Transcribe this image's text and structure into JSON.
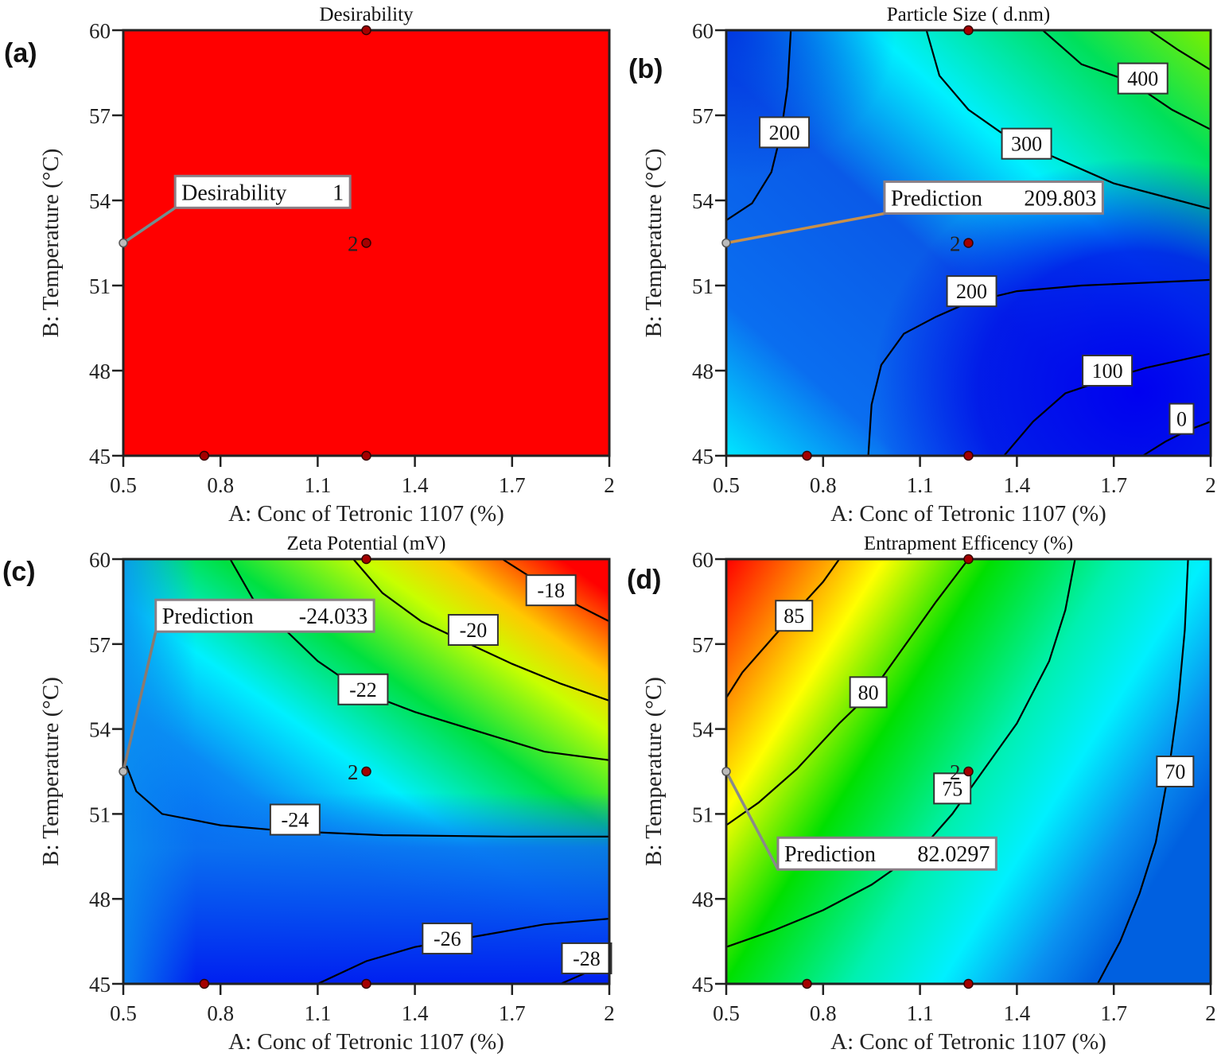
{
  "figure": {
    "x_axis": {
      "label": "A: Conc of Tetronic 1107 (%)",
      "range": [
        0.5,
        2.0
      ],
      "ticks": [
        0.5,
        0.8,
        1.1,
        1.4,
        1.7,
        2
      ],
      "tick_labels": [
        "0.5",
        "0.8",
        "1.1",
        "1.4",
        "1.7",
        "2"
      ]
    },
    "y_axis": {
      "label": "B: Temperature (°C)",
      "range": [
        45,
        60
      ],
      "ticks": [
        45,
        48,
        51,
        54,
        57,
        60
      ],
      "tick_labels": [
        "45",
        "48",
        "51",
        "54",
        "57",
        "60"
      ]
    },
    "design_points": [
      {
        "A": 1.25,
        "B": 60,
        "label": ""
      },
      {
        "A": 1.25,
        "B": 52.5,
        "label": "2"
      },
      {
        "A": 0.75,
        "B": 45,
        "label": ""
      },
      {
        "A": 1.25,
        "B": 45,
        "label": ""
      }
    ]
  },
  "chart_data": [
    {
      "id": "a",
      "type": "heatmap",
      "panel_label": "(a)",
      "title": "Desirability",
      "xlabel": "A: Conc of Tetronic 1107 (%)",
      "ylabel": "B: Temperature (°C)",
      "xlim": [
        0.5,
        2.0
      ],
      "ylim": [
        45,
        60
      ],
      "fill": "uniform",
      "fill_color": "#ff0000",
      "contours": [],
      "prediction": {
        "label": "Desirability",
        "value": "1",
        "at": {
          "A": 0.5,
          "B": 52.5
        },
        "box_at": {
          "A": 0.66,
          "B": 54.3
        },
        "leader_color": "#6f8f8f"
      }
    },
    {
      "id": "b",
      "type": "heatmap",
      "panel_label": "(b)",
      "title": "Particle Size ( d.nm)",
      "xlabel": "A: Conc of Tetronic 1107 (%)",
      "ylabel": "B: Temperature (°C)",
      "xlim": [
        0.5,
        2.0
      ],
      "ylim": [
        45,
        60
      ],
      "colormap": "blue-cyan-green (low to high)",
      "contours": [
        {
          "level": 200,
          "label": "200",
          "label_at": {
            "A": 0.68,
            "B": 56.4
          },
          "path": [
            [
              0.5,
              53.3
            ],
            [
              0.58,
              53.9
            ],
            [
              0.64,
              55.0
            ],
            [
              0.67,
              56.4
            ],
            [
              0.69,
              58.0
            ],
            [
              0.7,
              60
            ]
          ]
        },
        {
          "level": 300,
          "label": "300",
          "label_at": {
            "A": 1.43,
            "B": 56.0
          },
          "path": [
            [
              1.12,
              60
            ],
            [
              1.16,
              58.4
            ],
            [
              1.25,
              57.2
            ],
            [
              1.35,
              56.4
            ],
            [
              1.5,
              55.6
            ],
            [
              1.7,
              54.6
            ],
            [
              1.9,
              54.0
            ],
            [
              2.0,
              53.7
            ]
          ]
        },
        {
          "level": 400,
          "label": "400",
          "label_at": {
            "A": 1.79,
            "B": 58.3
          },
          "path": [
            [
              1.48,
              60
            ],
            [
              1.6,
              58.8
            ],
            [
              1.75,
              58.2
            ],
            [
              1.88,
              57.2
            ],
            [
              2.0,
              56.5
            ]
          ]
        },
        {
          "level": 500,
          "label": "",
          "label_at": null,
          "path": [
            [
              1.81,
              60
            ],
            [
              1.9,
              59.3
            ],
            [
              2.0,
              58.6
            ]
          ]
        },
        {
          "level": 200,
          "label": "200",
          "label_at": {
            "A": 1.26,
            "B": 50.8
          },
          "path": [
            [
              0.94,
              45
            ],
            [
              0.95,
              46.8
            ],
            [
              0.98,
              48.2
            ],
            [
              1.05,
              49.3
            ],
            [
              1.15,
              49.9
            ],
            [
              1.25,
              50.4
            ],
            [
              1.4,
              50.8
            ],
            [
              1.6,
              51.0
            ],
            [
              2.0,
              51.2
            ]
          ]
        },
        {
          "level": 100,
          "label": "100",
          "label_at": {
            "A": 1.68,
            "B": 48.0
          },
          "path": [
            [
              1.36,
              45
            ],
            [
              1.45,
              46.2
            ],
            [
              1.55,
              47.2
            ],
            [
              1.68,
              47.7
            ],
            [
              1.8,
              48.1
            ],
            [
              2.0,
              48.6
            ]
          ]
        },
        {
          "level": 0,
          "label": "0",
          "label_at": {
            "A": 1.91,
            "B": 46.3
          },
          "path": [
            [
              1.79,
              45
            ],
            [
              1.86,
              45.5
            ],
            [
              1.93,
              45.9
            ],
            [
              2.0,
              46.2
            ]
          ]
        }
      ],
      "prediction": {
        "label": "Prediction",
        "value": "209.803",
        "at": {
          "A": 0.5,
          "B": 52.5
        },
        "box_at": {
          "A": 0.99,
          "B": 54.1
        },
        "leader_color": "#c8904a"
      }
    },
    {
      "id": "c",
      "type": "heatmap",
      "panel_label": "(c)",
      "title": "Zeta Potential (mV)",
      "xlabel": "A: Conc of Tetronic 1107 (%)",
      "ylabel": "B: Temperature (°C)",
      "xlim": [
        0.5,
        2.0
      ],
      "ylim": [
        45,
        60
      ],
      "colormap": "blue-cyan-green-yellow-red (low to high)",
      "contours": [
        {
          "level": -18,
          "label": "-18",
          "label_at": {
            "A": 1.82,
            "B": 58.9
          },
          "path": [
            [
              1.67,
              60
            ],
            [
              1.78,
              59.2
            ],
            [
              1.88,
              58.5
            ],
            [
              2.0,
              57.8
            ]
          ]
        },
        {
          "level": -20,
          "label": "-20",
          "label_at": {
            "A": 1.58,
            "B": 57.5
          },
          "path": [
            [
              1.21,
              60
            ],
            [
              1.3,
              58.8
            ],
            [
              1.42,
              57.8
            ],
            [
              1.55,
              57.1
            ],
            [
              1.7,
              56.3
            ],
            [
              1.85,
              55.6
            ],
            [
              2.0,
              55.0
            ]
          ]
        },
        {
          "level": -22,
          "label": "-22",
          "label_at": {
            "A": 1.24,
            "B": 55.4
          },
          "path": [
            [
              0.83,
              60
            ],
            [
              0.9,
              58.6
            ],
            [
              1.0,
              57.5
            ],
            [
              1.1,
              56.4
            ],
            [
              1.24,
              55.3
            ],
            [
              1.4,
              54.6
            ],
            [
              1.6,
              53.9
            ],
            [
              1.8,
              53.2
            ],
            [
              2.0,
              52.9
            ]
          ]
        },
        {
          "level": -24,
          "label": "-24",
          "label_at": {
            "A": 1.03,
            "B": 50.8
          },
          "path": [
            [
              0.51,
              52.7
            ],
            [
              0.54,
              51.8
            ],
            [
              0.62,
              51.0
            ],
            [
              0.8,
              50.6
            ],
            [
              1.0,
              50.4
            ],
            [
              1.3,
              50.25
            ],
            [
              1.7,
              50.2
            ],
            [
              2.0,
              50.2
            ]
          ]
        },
        {
          "level": -26,
          "label": "-26",
          "label_at": {
            "A": 1.5,
            "B": 46.6
          },
          "path": [
            [
              1.1,
              45
            ],
            [
              1.25,
              45.8
            ],
            [
              1.4,
              46.3
            ],
            [
              1.6,
              46.7
            ],
            [
              1.8,
              47.1
            ],
            [
              2.0,
              47.3
            ]
          ]
        },
        {
          "level": -28,
          "label": "-28",
          "label_at": {
            "A": 1.93,
            "B": 45.9
          },
          "path": [
            [
              1.85,
              45
            ],
            [
              1.93,
              45.4
            ],
            [
              2.0,
              45.5
            ]
          ]
        }
      ],
      "prediction": {
        "label": "Prediction",
        "value": "-24.033",
        "at": {
          "A": 0.5,
          "B": 52.5
        },
        "box_at": {
          "A": 0.6,
          "B": 58.0
        },
        "leader_color": "#8a7a70"
      }
    },
    {
      "id": "d",
      "type": "heatmap",
      "panel_label": "(d)",
      "title": "Entrapment Efficency (%)",
      "xlabel": "A: Conc of Tetronic 1107 (%)",
      "ylabel": "B: Temperature (°C)",
      "xlim": [
        0.5,
        2.0
      ],
      "ylim": [
        45,
        60
      ],
      "colormap": "blue-cyan-green-yellow-red (low to high)",
      "contours": [
        {
          "level": 85,
          "label": "85",
          "label_at": {
            "A": 0.71,
            "B": 58.0
          },
          "path": [
            [
              0.5,
              55.1
            ],
            [
              0.55,
              56.0
            ],
            [
              0.65,
              57.3
            ],
            [
              0.72,
              58.2
            ],
            [
              0.8,
              59.2
            ],
            [
              0.85,
              60
            ]
          ]
        },
        {
          "level": 80,
          "label": "80",
          "label_at": {
            "A": 0.94,
            "B": 55.3
          },
          "path": [
            [
              0.5,
              50.6
            ],
            [
              0.6,
              51.4
            ],
            [
              0.72,
              52.6
            ],
            [
              0.85,
              54.2
            ],
            [
              0.95,
              55.3
            ],
            [
              1.05,
              56.9
            ],
            [
              1.15,
              58.5
            ],
            [
              1.25,
              60
            ]
          ]
        },
        {
          "level": 75,
          "label": "75",
          "label_at": {
            "A": 1.2,
            "B": 51.9
          },
          "path": [
            [
              0.5,
              46.3
            ],
            [
              0.65,
              46.9
            ],
            [
              0.8,
              47.6
            ],
            [
              0.95,
              48.5
            ],
            [
              1.1,
              49.7
            ],
            [
              1.2,
              51.0
            ],
            [
              1.3,
              52.6
            ],
            [
              1.4,
              54.2
            ],
            [
              1.5,
              56.4
            ],
            [
              1.55,
              58.2
            ],
            [
              1.58,
              60
            ]
          ]
        },
        {
          "level": 70,
          "label": "70",
          "label_at": {
            "A": 1.89,
            "B": 52.5
          },
          "path": [
            [
              1.65,
              45
            ],
            [
              1.72,
              46.5
            ],
            [
              1.78,
              48.2
            ],
            [
              1.83,
              50.0
            ],
            [
              1.87,
              52.5
            ],
            [
              1.9,
              55.0
            ],
            [
              1.92,
              57.5
            ],
            [
              1.93,
              60
            ]
          ]
        }
      ],
      "prediction": {
        "label": "Prediction",
        "value": "82.0297",
        "at": {
          "A": 0.5,
          "B": 52.5
        },
        "box_at": {
          "A": 0.66,
          "B": 49.6
        },
        "leader_color": "#8a8a8a"
      }
    }
  ]
}
